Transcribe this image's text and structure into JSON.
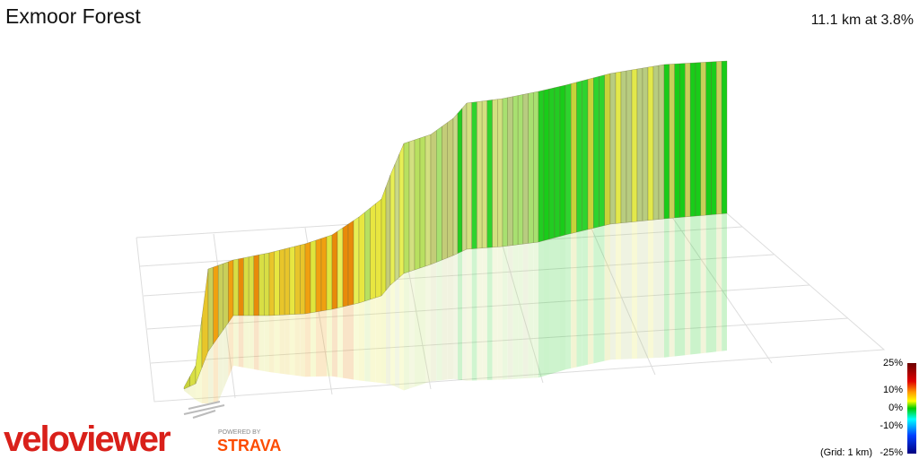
{
  "header": {
    "title": "Exmoor Forest",
    "summary": "11.1 km at 3.8%"
  },
  "legend": {
    "labels": [
      "25%",
      "10%",
      "0%",
      "-10%",
      "-25%"
    ],
    "grid_note": "(Grid: 1 km)"
  },
  "branding": {
    "logo": "veloviewer",
    "powered_by": "POWERED BY",
    "partner": "STRAVA"
  }
}
